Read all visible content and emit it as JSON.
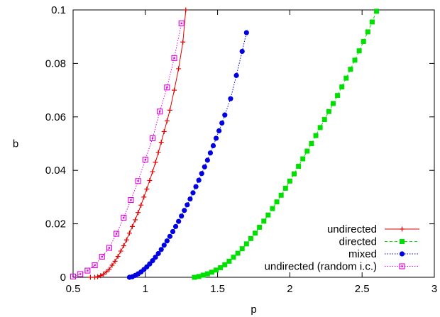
{
  "chart_data": {
    "type": "line",
    "xlabel": "p",
    "ylabel": "b",
    "xlim": [
      0.5,
      3
    ],
    "ylim": [
      0,
      0.1
    ],
    "xticks": [
      0.5,
      1,
      1.5,
      2,
      2.5,
      3
    ],
    "xtick_labels": [
      "0.5",
      "1",
      "1.5",
      "2",
      "2.5",
      "3"
    ],
    "yticks": [
      0,
      0.02,
      0.04,
      0.06,
      0.08,
      0.1
    ],
    "ytick_labels": [
      "0",
      "0.02",
      "0.04",
      "0.06",
      "0.08",
      "0.1"
    ],
    "grid": false,
    "legend_position": "bottom-right",
    "series": [
      {
        "name": "undirected",
        "color": "#e00000",
        "dash": "solid",
        "marker": "plus",
        "x": [
          0.62,
          0.65,
          0.67,
          0.69,
          0.71,
          0.73,
          0.75,
          0.77,
          0.79,
          0.81,
          0.83,
          0.85,
          0.87,
          0.89,
          0.91,
          0.93,
          0.95,
          0.97,
          0.99,
          1.01,
          1.03,
          1.05,
          1.07,
          1.09,
          1.11,
          1.13,
          1.15,
          1.17,
          1.2,
          1.23,
          1.26,
          1.28
        ],
        "y": [
          0.0,
          0.0,
          0.0002,
          0.0006,
          0.0012,
          0.002,
          0.003,
          0.0045,
          0.006,
          0.0078,
          0.0098,
          0.0118,
          0.014,
          0.0165,
          0.019,
          0.0215,
          0.0242,
          0.027,
          0.03,
          0.033,
          0.0362,
          0.0395,
          0.043,
          0.0467,
          0.0505,
          0.0545,
          0.0585,
          0.0625,
          0.07,
          0.078,
          0.088,
          0.1
        ]
      },
      {
        "name": "directed",
        "color": "#00e000",
        "dash": "dashed",
        "marker": "square-filled",
        "x": [
          1.34,
          1.37,
          1.4,
          1.43,
          1.46,
          1.49,
          1.52,
          1.55,
          1.58,
          1.61,
          1.64,
          1.67,
          1.7,
          1.73,
          1.76,
          1.79,
          1.82,
          1.85,
          1.88,
          1.91,
          1.94,
          1.97,
          2.0,
          2.03,
          2.06,
          2.09,
          2.12,
          2.15,
          2.18,
          2.21,
          2.24,
          2.27,
          2.3,
          2.33,
          2.36,
          2.39,
          2.42,
          2.45,
          2.48,
          2.51,
          2.54,
          2.57,
          2.6
        ],
        "y": [
          0.0,
          0.0003,
          0.0008,
          0.0013,
          0.0019,
          0.0027,
          0.0036,
          0.0047,
          0.006,
          0.0075,
          0.009,
          0.0107,
          0.0125,
          0.0145,
          0.0165,
          0.0187,
          0.021,
          0.0233,
          0.0257,
          0.0282,
          0.0307,
          0.0333,
          0.036,
          0.0387,
          0.0415,
          0.0443,
          0.0472,
          0.05,
          0.053,
          0.056,
          0.059,
          0.062,
          0.065,
          0.068,
          0.0712,
          0.0745,
          0.0778,
          0.0812,
          0.0847,
          0.0882,
          0.0918,
          0.0955,
          0.0995
        ]
      },
      {
        "name": "mixed",
        "color": "#0000e0",
        "dash": "dotted",
        "marker": "circle-filled",
        "x": [
          0.89,
          0.91,
          0.93,
          0.95,
          0.97,
          0.99,
          1.01,
          1.03,
          1.05,
          1.07,
          1.09,
          1.11,
          1.13,
          1.15,
          1.17,
          1.19,
          1.21,
          1.23,
          1.25,
          1.27,
          1.29,
          1.31,
          1.33,
          1.35,
          1.37,
          1.39,
          1.41,
          1.43,
          1.45,
          1.47,
          1.49,
          1.51,
          1.53,
          1.55,
          1.59,
          1.63,
          1.67,
          1.7
        ],
        "y": [
          0.0,
          0.0002,
          0.0007,
          0.0013,
          0.002,
          0.0029,
          0.0039,
          0.005,
          0.0062,
          0.0075,
          0.0089,
          0.0104,
          0.012,
          0.0136,
          0.0153,
          0.0171,
          0.019,
          0.0209,
          0.0229,
          0.025,
          0.0271,
          0.0293,
          0.0316,
          0.0339,
          0.0363,
          0.0388,
          0.0413,
          0.0438,
          0.0465,
          0.0492,
          0.052,
          0.0548,
          0.0577,
          0.0607,
          0.0668,
          0.0755,
          0.0845,
          0.0915
        ]
      },
      {
        "name": "undirected (random i.c.)",
        "color": "#e000e0",
        "dash": "dotted",
        "marker": "square-open",
        "x": [
          0.5,
          0.55,
          0.6,
          0.65,
          0.7,
          0.75,
          0.8,
          0.85,
          0.9,
          0.95,
          1.0,
          1.05,
          1.1,
          1.15,
          1.2,
          1.25
        ],
        "y": [
          0.0003,
          0.0012,
          0.0025,
          0.0045,
          0.0077,
          0.011,
          0.0163,
          0.0223,
          0.0289,
          0.036,
          0.044,
          0.052,
          0.062,
          0.071,
          0.082,
          0.095
        ]
      }
    ]
  }
}
